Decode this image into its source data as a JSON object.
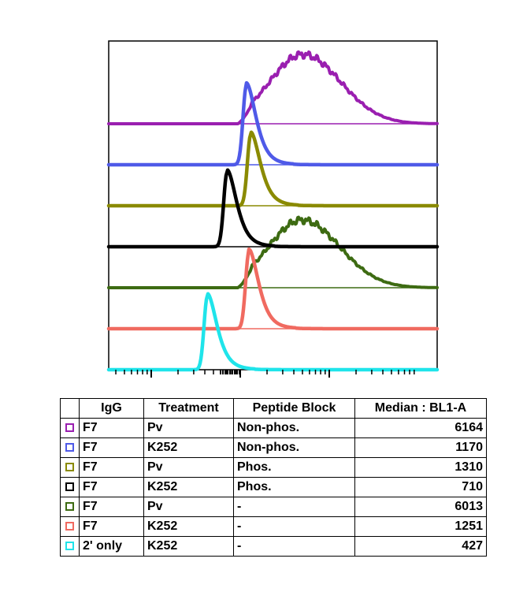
{
  "chart_data": {
    "type": "line",
    "title": "",
    "xlabel": "",
    "ylabel": "",
    "xscale": "log",
    "grid": false,
    "series": [
      {
        "swatch_color": "#9a1fb0",
        "igg": "F7",
        "treatment": "Pv",
        "peptide_block": "Non-phos.",
        "median": "6164",
        "peak_x": 6164,
        "peak_height": 1.0,
        "shape": "broad"
      },
      {
        "swatch_color": "#4f5ae8",
        "igg": "F7",
        "treatment": "K252",
        "peptide_block": "Non-phos.",
        "median": "1170",
        "peak_x": 1170,
        "peak_height": 1.0,
        "shape": "narrow"
      },
      {
        "swatch_color": "#8a8a00",
        "igg": "F7",
        "treatment": "Pv",
        "peptide_block": "Phos.",
        "median": "1310",
        "peak_x": 1310,
        "peak_height": 1.0,
        "shape": "narrow"
      },
      {
        "swatch_color": "#000000",
        "igg": "F7",
        "treatment": "K252",
        "peptide_block": "Phos.",
        "median": "710",
        "peak_x": 710,
        "peak_height": 1.0,
        "shape": "narrow"
      },
      {
        "swatch_color": "#3d6b12",
        "igg": "F7",
        "treatment": "Pv",
        "peptide_block": "-",
        "median": "6013",
        "peak_x": 6013,
        "peak_height": 1.0,
        "shape": "broad"
      },
      {
        "swatch_color": "#f06a60",
        "igg": "F7",
        "treatment": "K252",
        "peptide_block": "-",
        "median": "1251",
        "peak_x": 1251,
        "peak_height": 1.0,
        "shape": "narrow"
      },
      {
        "swatch_color": "#1fe4ea",
        "igg": "2' only",
        "treatment": "K252",
        "peptide_block": "-",
        "median": "427",
        "peak_x": 427,
        "peak_height": 1.0,
        "shape": "narrow"
      }
    ]
  },
  "table": {
    "headers": [
      "",
      "IgG",
      "Treatment",
      "Peptide Block",
      "Median : BL1-A"
    ]
  }
}
